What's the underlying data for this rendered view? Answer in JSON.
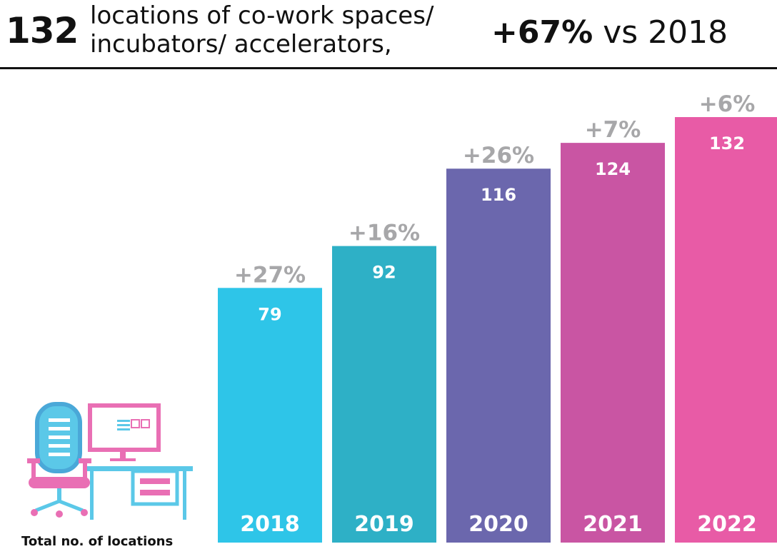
{
  "header": {
    "count": "132",
    "description": "locations of co-work spaces/ incubators/ accelerators,",
    "change_value": "+67%",
    "change_text": "vs 2018"
  },
  "footnote": "Total no. of locations",
  "icons": {
    "illustration": "desk-computer-chair-icon"
  },
  "chart_data": {
    "type": "bar",
    "title": "",
    "xlabel": "",
    "ylabel": "",
    "categories": [
      "2018",
      "2019",
      "2020",
      "2021",
      "2022"
    ],
    "values": [
      79,
      92,
      116,
      124,
      132
    ],
    "growth_labels": [
      "+27%",
      "+16%",
      "+26%",
      "+7%",
      "+6%"
    ],
    "colors": [
      "#2ec5e8",
      "#2eb0c6",
      "#6b67ad",
      "#c955a3",
      "#e85ba6"
    ],
    "growth_color": "#a7a7a9",
    "ylim": [
      0,
      132
    ],
    "grid": false,
    "legend": "none"
  }
}
